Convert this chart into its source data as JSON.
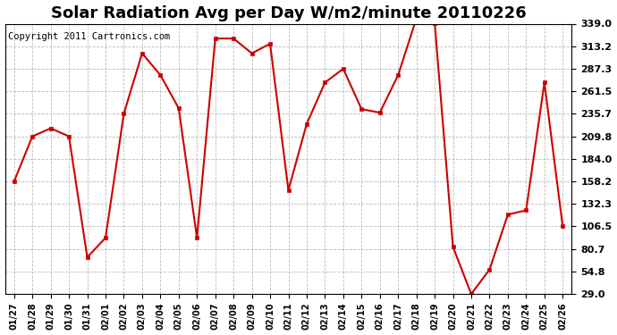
{
  "title": "Solar Radiation Avg per Day W/m2/minute 20110226",
  "copyright": "Copyright 2011 Cartronics.com",
  "x_labels": [
    "01/27",
    "01/28",
    "01/29",
    "01/30",
    "01/31",
    "02/01",
    "02/02",
    "02/03",
    "02/04",
    "02/05",
    "02/06",
    "02/07",
    "02/08",
    "02/09",
    "02/10",
    "02/11",
    "02/12",
    "02/13",
    "02/14",
    "02/15",
    "02/16",
    "02/17",
    "02/18",
    "02/19",
    "02/20",
    "02/21",
    "02/22",
    "02/23",
    "02/24",
    "02/25",
    "02/26"
  ],
  "y_values": [
    158.2,
    209.8,
    219.0,
    209.8,
    71.0,
    93.5,
    235.7,
    305.0,
    280.0,
    242.0,
    93.5,
    322.0,
    322.0,
    305.0,
    316.0,
    148.0,
    224.0,
    271.5,
    287.3,
    241.0,
    237.0,
    280.0,
    345.0,
    340.0,
    83.0,
    29.0,
    57.0,
    120.0,
    125.0,
    271.5,
    106.5
  ],
  "line_color": "#cc0000",
  "marker_color": "#cc0000",
  "bg_color": "#ffffff",
  "grid_color": "#aaaaaa",
  "yticks": [
    29.0,
    54.8,
    80.7,
    106.5,
    132.3,
    158.2,
    184.0,
    209.8,
    235.7,
    261.5,
    287.3,
    313.2,
    339.0
  ],
  "ylim": [
    29.0,
    339.0
  ],
  "title_fontsize": 13,
  "copyright_fontsize": 7.5
}
